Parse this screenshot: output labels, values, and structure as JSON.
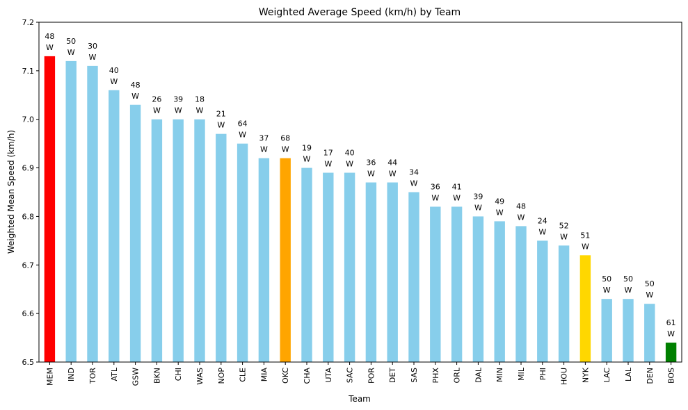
{
  "chart_data": {
    "type": "bar",
    "title": "Weighted Average Speed (km/h) by Team",
    "xlabel": "Team",
    "ylabel": "Weighted Mean Speed (km/h)",
    "ylim": [
      6.5,
      7.2
    ],
    "yticks": [
      "6.5",
      "6.6",
      "6.7",
      "6.8",
      "6.9",
      "7.0",
      "7.1",
      "7.2"
    ],
    "grid": false,
    "legend": "none",
    "categories": [
      "MEM",
      "IND",
      "TOR",
      "ATL",
      "GSW",
      "BKN",
      "CHI",
      "WAS",
      "NOP",
      "CLE",
      "MIA",
      "OKC",
      "CHA",
      "UTA",
      "SAC",
      "POR",
      "DET",
      "SAS",
      "PHX",
      "ORL",
      "DAL",
      "MIN",
      "MIL",
      "PHI",
      "HOU",
      "NYK",
      "LAC",
      "LAL",
      "DEN",
      "BOS"
    ],
    "values": [
      7.13,
      7.12,
      7.11,
      7.06,
      7.03,
      7.0,
      7.0,
      7.0,
      6.97,
      6.95,
      6.92,
      6.92,
      6.9,
      6.89,
      6.89,
      6.87,
      6.87,
      6.85,
      6.82,
      6.82,
      6.8,
      6.79,
      6.78,
      6.75,
      6.74,
      6.72,
      6.63,
      6.63,
      6.62,
      6.54
    ],
    "wins": [
      "48",
      "50",
      "30",
      "40",
      "48",
      "26",
      "39",
      "18",
      "21",
      "64",
      "37",
      "68",
      "19",
      "17",
      "40",
      "36",
      "44",
      "34",
      "36",
      "41",
      "39",
      "49",
      "48",
      "24",
      "52",
      "51",
      "50",
      "50",
      "50",
      "61"
    ],
    "win_suffix": "W",
    "colors": [
      "#ff0000",
      "#87ceeb",
      "#87ceeb",
      "#87ceeb",
      "#87ceeb",
      "#87ceeb",
      "#87ceeb",
      "#87ceeb",
      "#87ceeb",
      "#87ceeb",
      "#87ceeb",
      "#ffa500",
      "#87ceeb",
      "#87ceeb",
      "#87ceeb",
      "#87ceeb",
      "#87ceeb",
      "#87ceeb",
      "#87ceeb",
      "#87ceeb",
      "#87ceeb",
      "#87ceeb",
      "#87ceeb",
      "#87ceeb",
      "#87ceeb",
      "#ffd700",
      "#87ceeb",
      "#87ceeb",
      "#87ceeb",
      "#008000"
    ]
  }
}
